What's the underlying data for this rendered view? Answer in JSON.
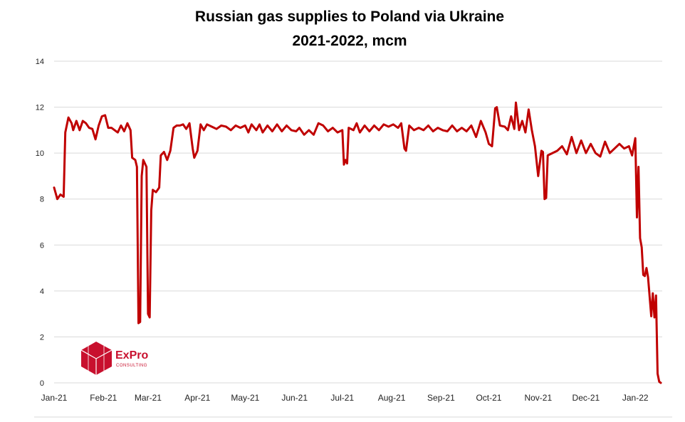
{
  "chart_data": {
    "type": "line",
    "title_line1": "Russian gas supplies to Poland via Ukraine",
    "title_line2": "2021-2022, mcm",
    "xlabel": "",
    "ylabel": "",
    "ylim": [
      0,
      14
    ],
    "yticks": [
      "0",
      "2",
      "4",
      "6",
      "8",
      "10",
      "12",
      "14"
    ],
    "grid": true,
    "x_tick_labels": [
      "Jan-21",
      "Feb-21",
      "Mar-21",
      "Apr-21",
      "May-21",
      "Jun-21",
      "Jul-21",
      "Aug-21",
      "Sep-21",
      "Oct-21",
      "Nov-21",
      "Dec-21",
      "Jan-22"
    ],
    "series": [
      {
        "color": "#c00000",
        "points": [
          [
            "2021-01-01",
            8.5
          ],
          [
            "2021-01-03",
            8.0
          ],
          [
            "2021-01-05",
            8.2
          ],
          [
            "2021-01-07",
            8.1
          ],
          [
            "2021-01-08",
            10.9
          ],
          [
            "2021-01-10",
            11.55
          ],
          [
            "2021-01-12",
            11.3
          ],
          [
            "2021-01-13",
            11.0
          ],
          [
            "2021-01-15",
            11.4
          ],
          [
            "2021-01-17",
            11.0
          ],
          [
            "2021-01-19",
            11.4
          ],
          [
            "2021-01-21",
            11.3
          ],
          [
            "2021-01-23",
            11.1
          ],
          [
            "2021-01-25",
            11.05
          ],
          [
            "2021-01-27",
            10.6
          ],
          [
            "2021-01-29",
            11.2
          ],
          [
            "2021-01-31",
            11.6
          ],
          [
            "2021-02-02",
            11.65
          ],
          [
            "2021-02-04",
            11.1
          ],
          [
            "2021-02-06",
            11.1
          ],
          [
            "2021-02-08",
            11.0
          ],
          [
            "2021-02-10",
            10.9
          ],
          [
            "2021-02-12",
            11.2
          ],
          [
            "2021-02-14",
            10.95
          ],
          [
            "2021-02-16",
            11.3
          ],
          [
            "2021-02-18",
            11.0
          ],
          [
            "2021-02-19",
            9.8
          ],
          [
            "2021-02-21",
            9.7
          ],
          [
            "2021-02-22",
            9.4
          ],
          [
            "2021-02-23",
            2.6
          ],
          [
            "2021-02-24",
            2.65
          ],
          [
            "2021-02-25",
            9.0
          ],
          [
            "2021-02-26",
            9.7
          ],
          [
            "2021-02-28",
            9.4
          ],
          [
            "2021-03-01",
            3.0
          ],
          [
            "2021-03-02",
            2.85
          ],
          [
            "2021-03-03",
            7.5
          ],
          [
            "2021-03-04",
            8.4
          ],
          [
            "2021-03-06",
            8.3
          ],
          [
            "2021-03-08",
            8.5
          ],
          [
            "2021-03-09",
            9.9
          ],
          [
            "2021-03-11",
            10.05
          ],
          [
            "2021-03-13",
            9.7
          ],
          [
            "2021-03-15",
            10.1
          ],
          [
            "2021-03-17",
            11.1
          ],
          [
            "2021-03-19",
            11.2
          ],
          [
            "2021-03-21",
            11.2
          ],
          [
            "2021-03-23",
            11.25
          ],
          [
            "2021-03-25",
            11.05
          ],
          [
            "2021-03-27",
            11.3
          ],
          [
            "2021-03-29",
            10.2
          ],
          [
            "2021-03-30",
            9.8
          ],
          [
            "2021-04-01",
            10.1
          ],
          [
            "2021-04-03",
            11.25
          ],
          [
            "2021-04-05",
            11.0
          ],
          [
            "2021-04-07",
            11.25
          ],
          [
            "2021-04-10",
            11.15
          ],
          [
            "2021-04-13",
            11.05
          ],
          [
            "2021-04-16",
            11.2
          ],
          [
            "2021-04-19",
            11.15
          ],
          [
            "2021-04-22",
            11.0
          ],
          [
            "2021-04-25",
            11.2
          ],
          [
            "2021-04-28",
            11.1
          ],
          [
            "2021-05-01",
            11.2
          ],
          [
            "2021-05-03",
            10.9
          ],
          [
            "2021-05-05",
            11.25
          ],
          [
            "2021-05-08",
            11.0
          ],
          [
            "2021-05-10",
            11.25
          ],
          [
            "2021-05-12",
            10.9
          ],
          [
            "2021-05-15",
            11.2
          ],
          [
            "2021-05-18",
            10.95
          ],
          [
            "2021-05-21",
            11.25
          ],
          [
            "2021-05-24",
            10.95
          ],
          [
            "2021-05-27",
            11.2
          ],
          [
            "2021-05-30",
            11.0
          ],
          [
            "2021-06-02",
            10.95
          ],
          [
            "2021-06-04",
            11.1
          ],
          [
            "2021-06-07",
            10.8
          ],
          [
            "2021-06-10",
            11.0
          ],
          [
            "2021-06-13",
            10.8
          ],
          [
            "2021-06-16",
            11.3
          ],
          [
            "2021-06-19",
            11.2
          ],
          [
            "2021-06-22",
            10.95
          ],
          [
            "2021-06-25",
            11.1
          ],
          [
            "2021-06-28",
            10.9
          ],
          [
            "2021-07-01",
            11.0
          ],
          [
            "2021-07-02",
            9.5
          ],
          [
            "2021-07-03",
            9.7
          ],
          [
            "2021-07-04",
            9.55
          ],
          [
            "2021-07-05",
            11.1
          ],
          [
            "2021-07-08",
            11.0
          ],
          [
            "2021-07-10",
            11.3
          ],
          [
            "2021-07-12",
            10.9
          ],
          [
            "2021-07-15",
            11.2
          ],
          [
            "2021-07-18",
            10.95
          ],
          [
            "2021-07-21",
            11.2
          ],
          [
            "2021-07-24",
            11.0
          ],
          [
            "2021-07-27",
            11.25
          ],
          [
            "2021-07-30",
            11.15
          ],
          [
            "2021-08-02",
            11.25
          ],
          [
            "2021-08-05",
            11.1
          ],
          [
            "2021-08-07",
            11.3
          ],
          [
            "2021-08-09",
            10.2
          ],
          [
            "2021-08-10",
            10.1
          ],
          [
            "2021-08-12",
            11.2
          ],
          [
            "2021-08-15",
            11.0
          ],
          [
            "2021-08-18",
            11.1
          ],
          [
            "2021-08-21",
            11.0
          ],
          [
            "2021-08-24",
            11.2
          ],
          [
            "2021-08-27",
            10.95
          ],
          [
            "2021-08-30",
            11.1
          ],
          [
            "2021-09-02",
            11.0
          ],
          [
            "2021-09-05",
            10.95
          ],
          [
            "2021-09-08",
            11.2
          ],
          [
            "2021-09-11",
            10.95
          ],
          [
            "2021-09-14",
            11.1
          ],
          [
            "2021-09-17",
            10.95
          ],
          [
            "2021-09-20",
            11.2
          ],
          [
            "2021-09-23",
            10.7
          ],
          [
            "2021-09-26",
            11.4
          ],
          [
            "2021-09-29",
            10.9
          ],
          [
            "2021-10-01",
            10.4
          ],
          [
            "2021-10-03",
            10.3
          ],
          [
            "2021-10-05",
            11.95
          ],
          [
            "2021-10-06",
            12.0
          ],
          [
            "2021-10-08",
            11.2
          ],
          [
            "2021-10-11",
            11.15
          ],
          [
            "2021-10-13",
            11.0
          ],
          [
            "2021-10-15",
            11.6
          ],
          [
            "2021-10-17",
            11.05
          ],
          [
            "2021-10-18",
            12.2
          ],
          [
            "2021-10-20",
            11.0
          ],
          [
            "2021-10-22",
            11.4
          ],
          [
            "2021-10-24",
            10.9
          ],
          [
            "2021-10-26",
            11.9
          ],
          [
            "2021-10-28",
            11.0
          ],
          [
            "2021-10-30",
            10.3
          ],
          [
            "2021-11-01",
            9.0
          ],
          [
            "2021-11-03",
            10.1
          ],
          [
            "2021-11-04",
            10.05
          ],
          [
            "2021-11-05",
            8.0
          ],
          [
            "2021-11-06",
            8.05
          ],
          [
            "2021-11-07",
            9.9
          ],
          [
            "2021-11-10",
            10.0
          ],
          [
            "2021-11-13",
            10.1
          ],
          [
            "2021-11-16",
            10.3
          ],
          [
            "2021-11-19",
            9.95
          ],
          [
            "2021-11-22",
            10.7
          ],
          [
            "2021-11-25",
            10.0
          ],
          [
            "2021-11-28",
            10.55
          ],
          [
            "2021-12-01",
            10.0
          ],
          [
            "2021-12-04",
            10.4
          ],
          [
            "2021-12-07",
            10.0
          ],
          [
            "2021-12-10",
            9.85
          ],
          [
            "2021-12-13",
            10.5
          ],
          [
            "2021-12-16",
            10.0
          ],
          [
            "2021-12-19",
            10.2
          ],
          [
            "2021-12-22",
            10.4
          ],
          [
            "2021-12-25",
            10.2
          ],
          [
            "2021-12-28",
            10.3
          ],
          [
            "2021-12-30",
            9.9
          ],
          [
            "2022-01-01",
            10.65
          ],
          [
            "2022-01-02",
            7.2
          ],
          [
            "2022-01-03",
            9.4
          ],
          [
            "2022-01-04",
            6.3
          ],
          [
            "2022-01-05",
            5.9
          ],
          [
            "2022-01-06",
            4.7
          ],
          [
            "2022-01-07",
            4.65
          ],
          [
            "2022-01-08",
            5.0
          ],
          [
            "2022-01-09",
            4.6
          ],
          [
            "2022-01-11",
            2.9
          ],
          [
            "2022-01-12",
            3.9
          ],
          [
            "2022-01-13",
            2.85
          ],
          [
            "2022-01-14",
            3.8
          ],
          [
            "2022-01-15",
            0.4
          ],
          [
            "2022-01-16",
            0.05
          ],
          [
            "2022-01-17",
            0.0
          ]
        ]
      }
    ]
  },
  "logo": {
    "name": "ExPro",
    "sub": "CONSULTING"
  }
}
